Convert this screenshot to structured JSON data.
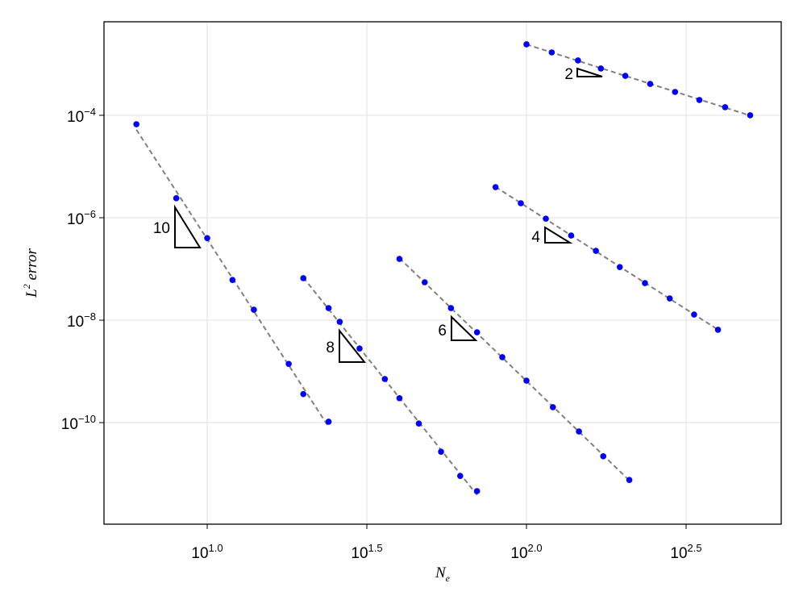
{
  "chart_data": {
    "type": "scatter",
    "xlabel": "N_e",
    "ylabel": "L^2 error",
    "xscale": "log",
    "yscale": "log",
    "grid": true,
    "xlim": [
      4.75,
      628
    ],
    "ylim": [
      1.04e-12,
      0.0067
    ],
    "xticks": [
      {
        "value": 10,
        "label": "10^1.0"
      },
      {
        "value": 31.6227766,
        "label": "10^1.5"
      },
      {
        "value": 100,
        "label": "10^2.0"
      },
      {
        "value": 316.227766,
        "label": "10^2.5"
      }
    ],
    "yticks": [
      {
        "value": 0.0001,
        "label": "10^−4"
      },
      {
        "value": 1e-06,
        "label": "10^−6"
      },
      {
        "value": 1e-08,
        "label": "10^−8"
      },
      {
        "value": 1e-10,
        "label": "10^−10"
      }
    ],
    "marker_color": "#0000ff",
    "fit_color": "#808080",
    "series": [
      {
        "slope_label": "10",
        "x": [
          6,
          8,
          10,
          12,
          14,
          18,
          20,
          24
        ],
        "values": [
          6.7e-05,
          2.4e-06,
          4e-07,
          6.1e-08,
          1.6e-08,
          1.4e-09,
          3.6e-10,
          1.04e-10
        ]
      },
      {
        "slope_label": "8",
        "x": [
          20,
          24,
          26,
          30,
          36,
          40,
          46,
          54,
          62,
          70
        ],
        "values": [
          6.6e-08,
          1.72e-08,
          9.3e-09,
          2.8e-09,
          7.1e-10,
          3e-10,
          9.6e-11,
          2.7e-11,
          9.1e-12,
          4.6e-12
        ]
      },
      {
        "slope_label": "6",
        "x": [
          40,
          48,
          58,
          70,
          84,
          100,
          121,
          146,
          174,
          210
        ],
        "values": [
          1.57e-07,
          5.5e-08,
          1.72e-08,
          5.8e-09,
          1.89e-09,
          6.6e-10,
          2e-10,
          6.7e-11,
          2.2e-11,
          7.6e-12
        ]
      },
      {
        "slope_label": "4",
        "x": [
          80,
          96,
          115,
          138,
          165,
          196,
          235,
          281,
          335,
          398
        ],
        "values": [
          3.96e-06,
          1.92e-06,
          9.6e-07,
          4.5e-07,
          2.26e-07,
          1.09e-07,
          5.3e-08,
          2.66e-08,
          1.29e-08,
          6.5e-09
        ]
      },
      {
        "slope_label": "2",
        "x": [
          100,
          120,
          145,
          171,
          204,
          244,
          292,
          348,
          419,
          502
        ],
        "values": [
          0.00243,
          0.00169,
          0.00118,
          0.00082,
          0.00059,
          0.00041,
          0.000286,
          0.000199,
          0.000144,
          0.0001
        ]
      }
    ]
  }
}
